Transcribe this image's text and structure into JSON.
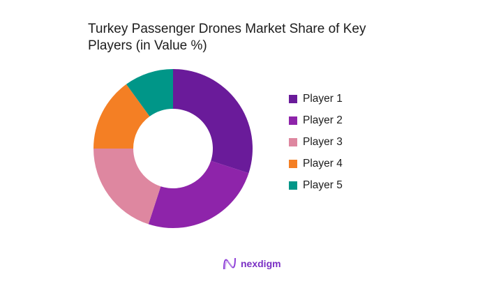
{
  "title": {
    "line1": " Turkey Passenger Drones Market Share of Key",
    "line2": "Players (in Value %)"
  },
  "chart_data": {
    "type": "pie",
    "variant": "donut",
    "title": "Turkey Passenger Drones Market Share of Key Players (in Value %)",
    "categories": [
      "Player 1",
      "Player 2",
      "Player 3",
      "Player 4",
      "Player 5"
    ],
    "values": [
      30,
      25,
      20,
      15,
      10
    ],
    "colors": [
      "#6a1b9a",
      "#8e24aa",
      "#de87a0",
      "#f47f24",
      "#009688"
    ],
    "legend_position": "right",
    "start_angle": "top",
    "direction": "clockwise"
  },
  "legend": [
    {
      "label": "Player 1",
      "color": "#6a1b9a"
    },
    {
      "label": "Player 2",
      "color": "#8e24aa"
    },
    {
      "label": "Player 3",
      "color": "#de87a0"
    },
    {
      "label": "Player 4",
      "color": "#f47f24"
    },
    {
      "label": "Player 5",
      "color": "#009688"
    }
  ],
  "brand": {
    "name": "nexdigm",
    "icon": "nexdigm-logo-icon"
  }
}
